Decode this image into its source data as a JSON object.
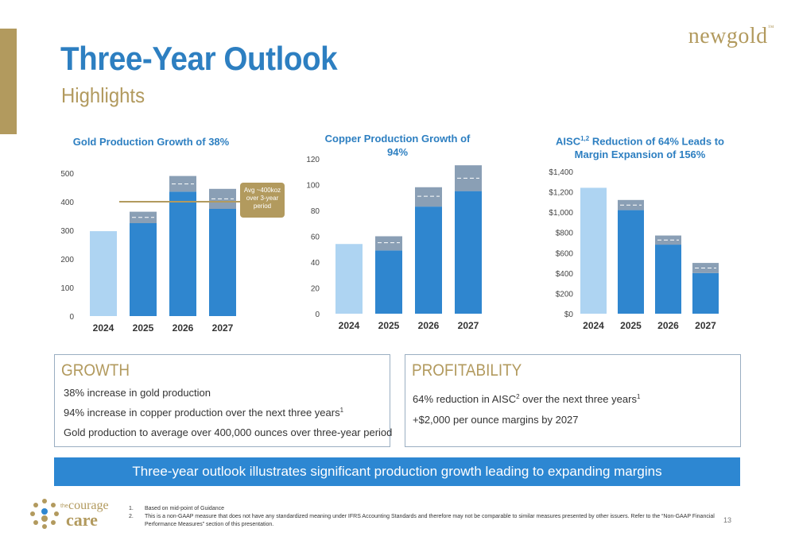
{
  "header": {
    "title": "Three-Year Outlook",
    "subtitle": "Highlights",
    "logo_text": "newgold",
    "logo_tm": "™"
  },
  "charts": {
    "gold": {
      "title": "Gold Production Growth of 38%",
      "avg_label": "Avg ~400koz over 3-year period"
    },
    "copper": {
      "title": "Copper Production Growth of 94%"
    },
    "aisc": {
      "title_line1": "AISC",
      "title_sup": "1,2",
      "title_rest": " Reduction of 64% Leads to",
      "title_line2": "Margin Expansion of 156%"
    }
  },
  "chart_data": [
    {
      "type": "bar",
      "title": "Gold Production Growth of 38%",
      "categories": [
        "2024",
        "2025",
        "2026",
        "2027"
      ],
      "series": [
        {
          "values": [
            297,
            325,
            435,
            375
          ]
        },
        {
          "values": [
            0,
            40,
            55,
            70
          ]
        }
      ],
      "midpoints": [
        null,
        345,
        462,
        410
      ],
      "ylim": [
        0,
        500
      ],
      "yticks": [
        "0",
        "100",
        "200",
        "300",
        "400",
        "500"
      ],
      "average_line": 400,
      "colors": {
        "base_2024": "#AED4F2",
        "base": "#2F86CF",
        "range": "#8A9FB5",
        "avg": "#B29A5E"
      }
    },
    {
      "type": "bar",
      "title": "Copper Production Growth of 94%",
      "categories": [
        "2024",
        "2025",
        "2026",
        "2027"
      ],
      "series": [
        {
          "values": [
            54,
            49,
            83,
            95
          ]
        },
        {
          "values": [
            0,
            11,
            15,
            20
          ]
        }
      ],
      "midpoints": [
        null,
        55,
        91,
        105
      ],
      "ylim": [
        0,
        120
      ],
      "yticks": [
        "0",
        "20",
        "40",
        "60",
        "80",
        "100",
        "120"
      ],
      "colors": {
        "base_2024": "#AED4F2",
        "base": "#2F86CF",
        "range": "#8A9FB5"
      }
    },
    {
      "type": "bar",
      "title": "AISC1,2 Reduction of 64% Leads to Margin Expansion of 156%",
      "categories": [
        "2024",
        "2025",
        "2026",
        "2027"
      ],
      "series": [
        {
          "values": [
            1240,
            1020,
            680,
            400
          ]
        },
        {
          "values": [
            0,
            100,
            90,
            100
          ]
        }
      ],
      "midpoints": [
        null,
        1070,
        725,
        450
      ],
      "ylim": [
        0,
        1400
      ],
      "yticks": [
        "$0",
        "$200",
        "$400",
        "$600",
        "$800",
        "$1,000",
        "$1,200",
        "$1,400"
      ],
      "colors": {
        "base_2024": "#AED4F2",
        "base": "#2F86CF",
        "range": "#8A9FB5"
      }
    }
  ],
  "growth": {
    "heading": "GROWTH",
    "line1": "38% increase in gold production",
    "line2": "94% increase in copper production over the next three years",
    "line2_sup": "1",
    "line3": "Gold production to average over 400,000 ounces over three-year period"
  },
  "profitability": {
    "heading": "PROFITABILITY",
    "line1_a": "64% reduction in AISC",
    "line1_sup": "2",
    "line1_b": " over the next three years",
    "line1_sup2": "1",
    "line2": "+$2,000 per ounce margins by 2027"
  },
  "banner": {
    "text": "Three-year outlook illustrates significant production growth leading to expanding margins"
  },
  "footer": {
    "logo_the": "the",
    "logo_courage": "courage",
    "logo_care": "care",
    "fn1_num": "1.",
    "fn1": "Based on mid-point of Guidance",
    "fn2_num": "2.",
    "fn2": "This is a non-GAAP measure that does not have any standardized meaning under IFRS Accounting Standards and therefore may not be comparable to similar measures presented by other issuers.  Refer to the “Non-GAAP Financial Performance Measures” section of this presentation.",
    "page": "13"
  }
}
